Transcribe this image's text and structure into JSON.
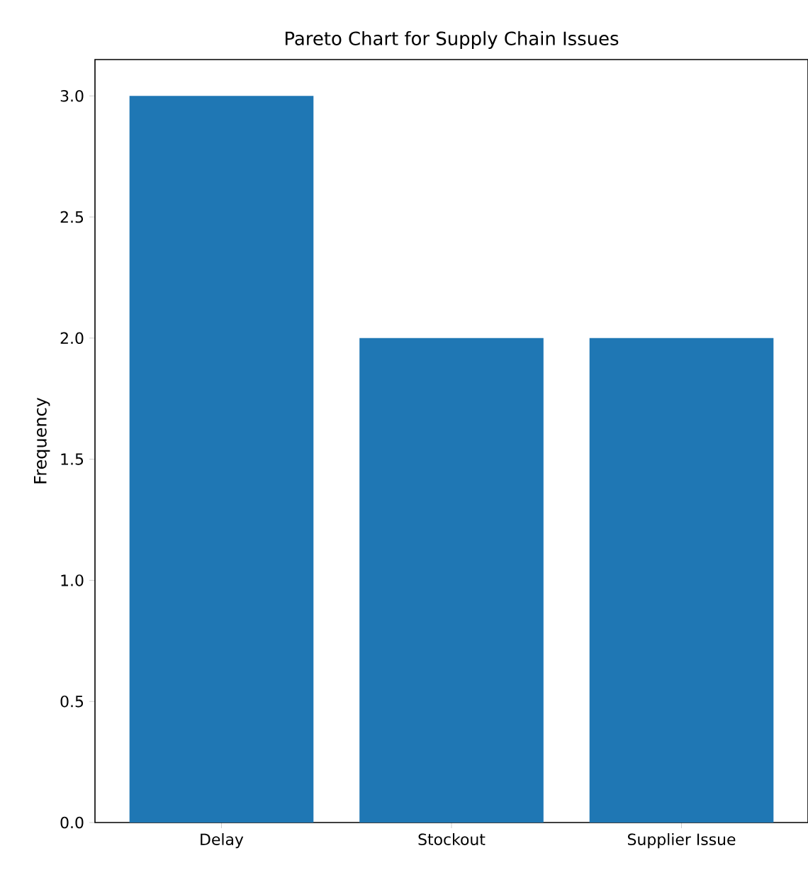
{
  "chart_data": {
    "type": "bar",
    "title": "Pareto Chart for Supply Chain Issues",
    "ylabel": "Frequency",
    "categories": [
      "Delay",
      "Stockout",
      "Supplier Issue"
    ],
    "values": [
      3,
      2,
      2
    ],
    "color": "#1f77b4",
    "ylim": [
      0,
      3.15
    ],
    "yticks": [
      {
        "value": 0,
        "label": "0.0"
      },
      {
        "value": 0.5,
        "label": "0.5"
      },
      {
        "value": 1,
        "label": "1.0"
      },
      {
        "value": 1.5,
        "label": "1.5"
      },
      {
        "value": 2,
        "label": "2.0"
      },
      {
        "value": 2.5,
        "label": "2.5"
      },
      {
        "value": 3,
        "label": "3.0"
      }
    ],
    "grid": false
  }
}
